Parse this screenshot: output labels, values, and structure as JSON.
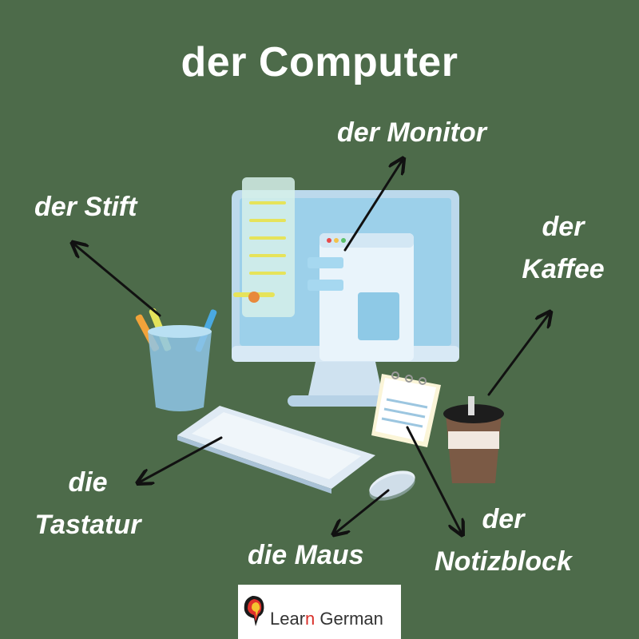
{
  "title": "der Computer",
  "labels": {
    "monitor": "der Monitor",
    "stift": "der Stift",
    "kaffee_line1": "der",
    "kaffee_line2": "Kaffee",
    "tastatur_line1": "die",
    "tastatur_line2": "Tastatur",
    "maus": "die Maus",
    "notizblock_line1": "der",
    "notizblock_line2": "Notizblock"
  },
  "logo": {
    "text_part1": "Lear",
    "text_accent": "n",
    "text_part2": " German"
  },
  "colors": {
    "background": "#4d6b4a",
    "label_text": "#ffffff",
    "logo_accent": "#d9302a"
  }
}
